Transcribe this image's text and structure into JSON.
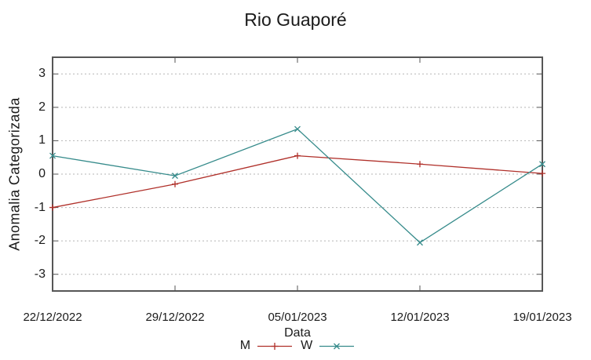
{
  "title": "Rio Guaporé",
  "chart_data": {
    "type": "line",
    "title": "Rio Guaporé",
    "xlabel": "Data",
    "ylabel": "Anomalia Categorizada",
    "categories": [
      "22/12/2022",
      "29/12/2022",
      "05/01/2023",
      "12/01/2023",
      "19/01/2023"
    ],
    "series": [
      {
        "name": "M",
        "marker": "plus",
        "color": "#b0302a",
        "values": [
          -1.0,
          -0.3,
          0.55,
          0.3,
          0.02
        ]
      },
      {
        "name": "W",
        "marker": "cross",
        "color": "#368b8b",
        "values": [
          0.55,
          -0.05,
          1.35,
          -2.05,
          0.3
        ]
      }
    ],
    "ylim": [
      -3.5,
      3.5
    ],
    "yticks": [
      3,
      2,
      1,
      0,
      -1,
      -2,
      -3
    ],
    "grid": "horizontal-dotted",
    "legend_position": "bottom-center"
  },
  "colors": {
    "background": "#ffffff",
    "axis_border": "#565656",
    "gridline": "#b5b5b5",
    "text": "#1a1a1a"
  }
}
